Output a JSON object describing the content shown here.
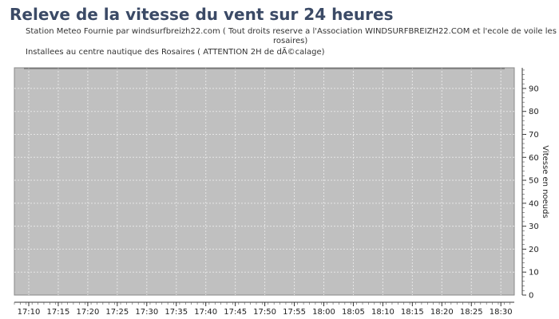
{
  "title": "Releve de la vitesse du vent sur 24 heures",
  "subtitle_line1": "Station Meteo Fournie  par windsurfbreizh22.com  ( Tout droits reserve a l'Association WINDSURFBREIZH22.COM  et l'ecole de voile les",
  "subtitle_line1b": "rosaires)",
  "subtitle_line2": "Installees au centre nautique des Rosaires ( ATTENTION 2H de dÃ©calage)",
  "chart_data": {
    "type": "line",
    "title": "Releve de la vitesse du vent sur 24 heures",
    "ylabel": "Vitesse en noeuds",
    "xlabel": "",
    "ylim": [
      0,
      99
    ],
    "y_ticks": [
      0,
      10,
      20,
      30,
      40,
      50,
      60,
      70,
      80,
      90
    ],
    "x_ticks": [
      "17:10",
      "17:15",
      "17:20",
      "17:25",
      "17:30",
      "17:35",
      "17:40",
      "17:45",
      "17:50",
      "17:55",
      "18:00",
      "18:05",
      "18:10",
      "18:15",
      "18:20",
      "18:25",
      "18:30"
    ],
    "y_axis_side": "right",
    "grid": true,
    "series": [],
    "colors": {
      "plot_bg": "#c0c0c0",
      "grid": "#e6e6e6"
    }
  }
}
